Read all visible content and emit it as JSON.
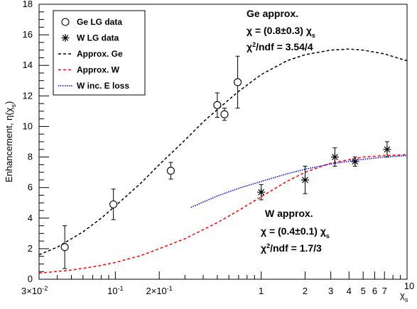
{
  "chart_data": {
    "type": "scatter",
    "x_scale": "log",
    "xlim": [
      0.03,
      10
    ],
    "ylim": [
      0,
      18
    ],
    "grid": false,
    "legend_position": "top-left",
    "ylabel_html": "Enhancement, η(χ<tspan baseline-shift='sub' font-size='9'>s</tspan>)",
    "xlabel_html": "χ<tspan baseline-shift='sub' font-size='9'>s</tspan>",
    "x_ticks_major": [
      {
        "value": 0.03,
        "label_html": "3×10<tspan baseline-shift='super' font-size='9'>-2</tspan>"
      },
      {
        "value": 0.1,
        "label_html": "10<tspan baseline-shift='super' font-size='9'>-1</tspan>"
      },
      {
        "value": 0.2,
        "label_html": "2×10<tspan baseline-shift='super' font-size='9'>-1</tspan>"
      },
      {
        "value": 1,
        "label_html": "1"
      },
      {
        "value": 2,
        "label_html": "2"
      },
      {
        "value": 3,
        "label_html": "3"
      },
      {
        "value": 4,
        "label_html": "4"
      },
      {
        "value": 5,
        "label_html": "5"
      },
      {
        "value": 6,
        "label_html": "6"
      },
      {
        "value": 7,
        "label_html": "7"
      },
      {
        "value": 10,
        "label_html": "10"
      }
    ],
    "x_ticks_minor": [
      0.04,
      0.05,
      0.06,
      0.07,
      0.08,
      0.09,
      0.3,
      0.4,
      0.5,
      0.6,
      0.7,
      0.8,
      0.9,
      8,
      9
    ],
    "y_ticks": [
      0,
      2,
      4,
      6,
      8,
      10,
      12,
      14,
      16,
      18
    ],
    "series": [
      {
        "name": "Ge LG data",
        "kind": "points",
        "marker": "open-circle",
        "color": "#000000",
        "points": [
          {
            "x": 0.045,
            "y": 2.1,
            "err": 1.4
          },
          {
            "x": 0.097,
            "y": 4.9,
            "err": 1.0
          },
          {
            "x": 0.24,
            "y": 7.1,
            "err": 0.55
          },
          {
            "x": 0.5,
            "y": 11.4,
            "err": 0.8
          },
          {
            "x": 0.56,
            "y": 10.8,
            "err": 0.4
          },
          {
            "x": 0.69,
            "y": 12.9,
            "err": 1.7
          }
        ]
      },
      {
        "name": "W LG data",
        "kind": "points",
        "marker": "asterisk",
        "color": "#000000",
        "points": [
          {
            "x": 1.0,
            "y": 5.7,
            "err": 0.5
          },
          {
            "x": 2.0,
            "y": 6.5,
            "err": 0.9
          },
          {
            "x": 3.2,
            "y": 8.0,
            "err": 0.6
          },
          {
            "x": 4.4,
            "y": 7.7,
            "err": 0.3
          },
          {
            "x": 7.3,
            "y": 8.5,
            "err": 0.5
          }
        ]
      },
      {
        "name": "Approx. Ge",
        "kind": "line",
        "style": "dashed",
        "color": "#000000",
        "points": [
          {
            "x": 0.03,
            "y": 1.6
          },
          {
            "x": 0.04,
            "y": 2.1
          },
          {
            "x": 0.06,
            "y": 3.1
          },
          {
            "x": 0.08,
            "y": 4.0
          },
          {
            "x": 0.1,
            "y": 4.8
          },
          {
            "x": 0.15,
            "y": 6.3
          },
          {
            "x": 0.2,
            "y": 7.5
          },
          {
            "x": 0.3,
            "y": 9.1
          },
          {
            "x": 0.4,
            "y": 10.3
          },
          {
            "x": 0.5,
            "y": 11.1
          },
          {
            "x": 0.7,
            "y": 12.3
          },
          {
            "x": 1.0,
            "y": 13.4
          },
          {
            "x": 1.5,
            "y": 14.3
          },
          {
            "x": 2.0,
            "y": 14.7
          },
          {
            "x": 3.0,
            "y": 15.0
          },
          {
            "x": 4.0,
            "y": 15.07
          },
          {
            "x": 5.0,
            "y": 15.0
          },
          {
            "x": 7.0,
            "y": 14.75
          },
          {
            "x": 10.0,
            "y": 14.3
          }
        ]
      },
      {
        "name": "Approx. W",
        "kind": "line",
        "style": "dashed",
        "color": "#ff0000",
        "points": [
          {
            "x": 0.03,
            "y": 0.4
          },
          {
            "x": 0.05,
            "y": 0.6
          },
          {
            "x": 0.08,
            "y": 0.9
          },
          {
            "x": 0.1,
            "y": 1.1
          },
          {
            "x": 0.15,
            "y": 1.55
          },
          {
            "x": 0.2,
            "y": 2.0
          },
          {
            "x": 0.3,
            "y": 2.65
          },
          {
            "x": 0.5,
            "y": 3.7
          },
          {
            "x": 0.7,
            "y": 4.5
          },
          {
            "x": 1.0,
            "y": 5.4
          },
          {
            "x": 1.5,
            "y": 6.4
          },
          {
            "x": 2.0,
            "y": 7.0
          },
          {
            "x": 3.0,
            "y": 7.6
          },
          {
            "x": 5.0,
            "y": 8.0
          },
          {
            "x": 7.0,
            "y": 8.1
          },
          {
            "x": 10.0,
            "y": 8.15
          }
        ]
      },
      {
        "name": "W inc. E loss",
        "kind": "line",
        "style": "dotted",
        "color": "#0000ff",
        "points": [
          {
            "x": 0.33,
            "y": 4.7
          },
          {
            "x": 0.4,
            "y": 5.05
          },
          {
            "x": 0.5,
            "y": 5.45
          },
          {
            "x": 0.7,
            "y": 5.95
          },
          {
            "x": 1.0,
            "y": 6.4
          },
          {
            "x": 1.5,
            "y": 6.9
          },
          {
            "x": 2.0,
            "y": 7.2
          },
          {
            "x": 3.0,
            "y": 7.55
          },
          {
            "x": 5.0,
            "y": 7.85
          },
          {
            "x": 7.0,
            "y": 8.0
          },
          {
            "x": 10.0,
            "y": 8.1
          }
        ]
      }
    ],
    "annotations": [
      {
        "id": "ge-title",
        "html": "Ge approx."
      },
      {
        "id": "ge-chi",
        "html": "χ = (0.8±0.3) χ<tspan baseline-shift='sub' font-size='9'>s</tspan>"
      },
      {
        "id": "ge-ndf",
        "html": "χ<tspan baseline-shift='super' font-size='9'>2</tspan>/ndf = 3.54/4"
      },
      {
        "id": "w-title",
        "html": "W approx."
      },
      {
        "id": "w-chi",
        "html": "χ = (0.4±0.1) χ<tspan baseline-shift='sub' font-size='9'>s</tspan>"
      },
      {
        "id": "w-ndf",
        "html": "χ<tspan baseline-shift='super' font-size='9'>2</tspan>/ndf = 1.7/3"
      }
    ]
  }
}
